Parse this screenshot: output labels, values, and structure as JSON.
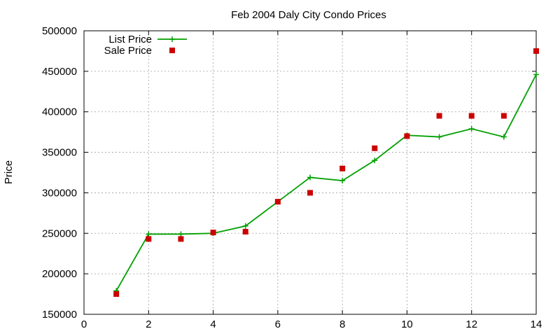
{
  "chart_data": {
    "type": "line",
    "title": "Feb 2004 Daly City Condo Prices",
    "xlabel": "",
    "ylabel": "Price",
    "xlim": [
      0,
      14
    ],
    "ylim": [
      150000,
      500000
    ],
    "x_ticks": [
      0,
      2,
      4,
      6,
      8,
      10,
      12,
      14
    ],
    "y_ticks": [
      150000,
      200000,
      250000,
      300000,
      350000,
      400000,
      450000,
      500000
    ],
    "grid": true,
    "legend_position": "top-left",
    "series": [
      {
        "name": "List Price",
        "style": "linespoints",
        "marker": "plus",
        "color": "#00a000",
        "x": [
          1,
          2,
          3,
          4,
          5,
          6,
          7,
          8,
          9,
          10,
          11,
          12,
          13,
          14
        ],
        "values": [
          179000,
          249000,
          249000,
          250000,
          259000,
          289000,
          319000,
          315000,
          340000,
          371000,
          369000,
          379000,
          369000,
          446000
        ]
      },
      {
        "name": "Sale Price",
        "style": "points",
        "marker": "square",
        "color": "#cc0000",
        "x": [
          1,
          2,
          3,
          4,
          5,
          6,
          7,
          8,
          9,
          10,
          11,
          12,
          13,
          14
        ],
        "values": [
          175000,
          243000,
          243000,
          251000,
          252000,
          289000,
          300000,
          330000,
          355000,
          370000,
          395000,
          395000,
          395000,
          475000
        ]
      }
    ]
  }
}
